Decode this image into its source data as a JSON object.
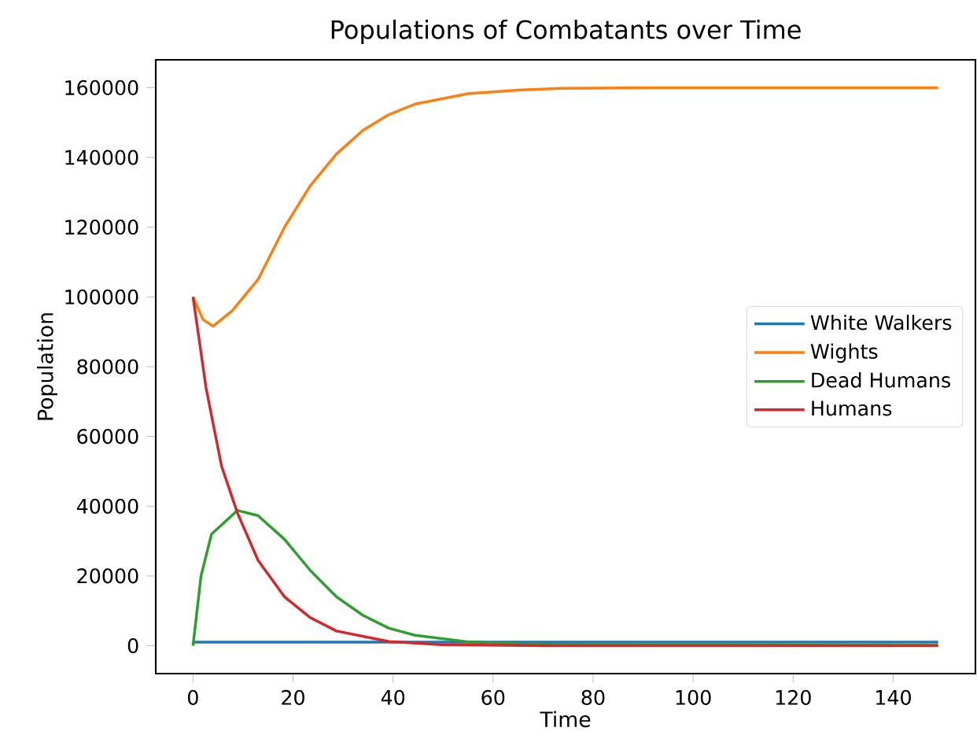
{
  "chart_data": {
    "type": "line",
    "title": "Populations of Combatants over Time",
    "xlabel": "Time",
    "ylabel": "Population",
    "xlim": [
      -7.45,
      156.45
    ],
    "ylim": [
      -8000,
      168000
    ],
    "xticks": [
      0,
      20,
      40,
      60,
      80,
      100,
      120,
      140
    ],
    "yticks": [
      0,
      20000,
      40000,
      60000,
      80000,
      100000,
      120000,
      140000,
      160000
    ],
    "legend": "right",
    "grid": false,
    "marker": "none",
    "line_style": "solid",
    "series": [
      {
        "name": "White Walkers",
        "color": "#1f77b4",
        "x": [
          0,
          149
        ],
        "values": [
          1000,
          1000
        ]
      },
      {
        "name": "Wights",
        "color": "#ff7f0e",
        "x": [
          0,
          2,
          4,
          7.8,
          13,
          18.3,
          23.5,
          28.7,
          34,
          39.2,
          44.4,
          55,
          65,
          73.7,
          90,
          149
        ],
        "values": [
          100000,
          93500,
          91600,
          96000,
          105000,
          120000,
          132000,
          141000,
          147800,
          152300,
          155300,
          158300,
          159300,
          159800,
          160000,
          160000
        ]
      },
      {
        "name": "Dead Humans",
        "color": "#2ca02c",
        "x": [
          0,
          1.6,
          3.7,
          8.9,
          13,
          18.3,
          23.5,
          28.7,
          34,
          39.2,
          44.4,
          55,
          65,
          80,
          149
        ],
        "values": [
          0,
          20000,
          32000,
          38800,
          37300,
          30500,
          21500,
          14000,
          8700,
          5000,
          3000,
          1100,
          500,
          300,
          100
        ]
      },
      {
        "name": "Humans",
        "color": "#d62728",
        "x": [
          0,
          2.6,
          5.7,
          8.9,
          13,
          18.3,
          23.5,
          28.7,
          39.2,
          49.6,
          70,
          149
        ],
        "values": [
          100000,
          74000,
          51500,
          38000,
          24500,
          14000,
          8000,
          4200,
          1200,
          300,
          0,
          0
        ]
      }
    ]
  }
}
